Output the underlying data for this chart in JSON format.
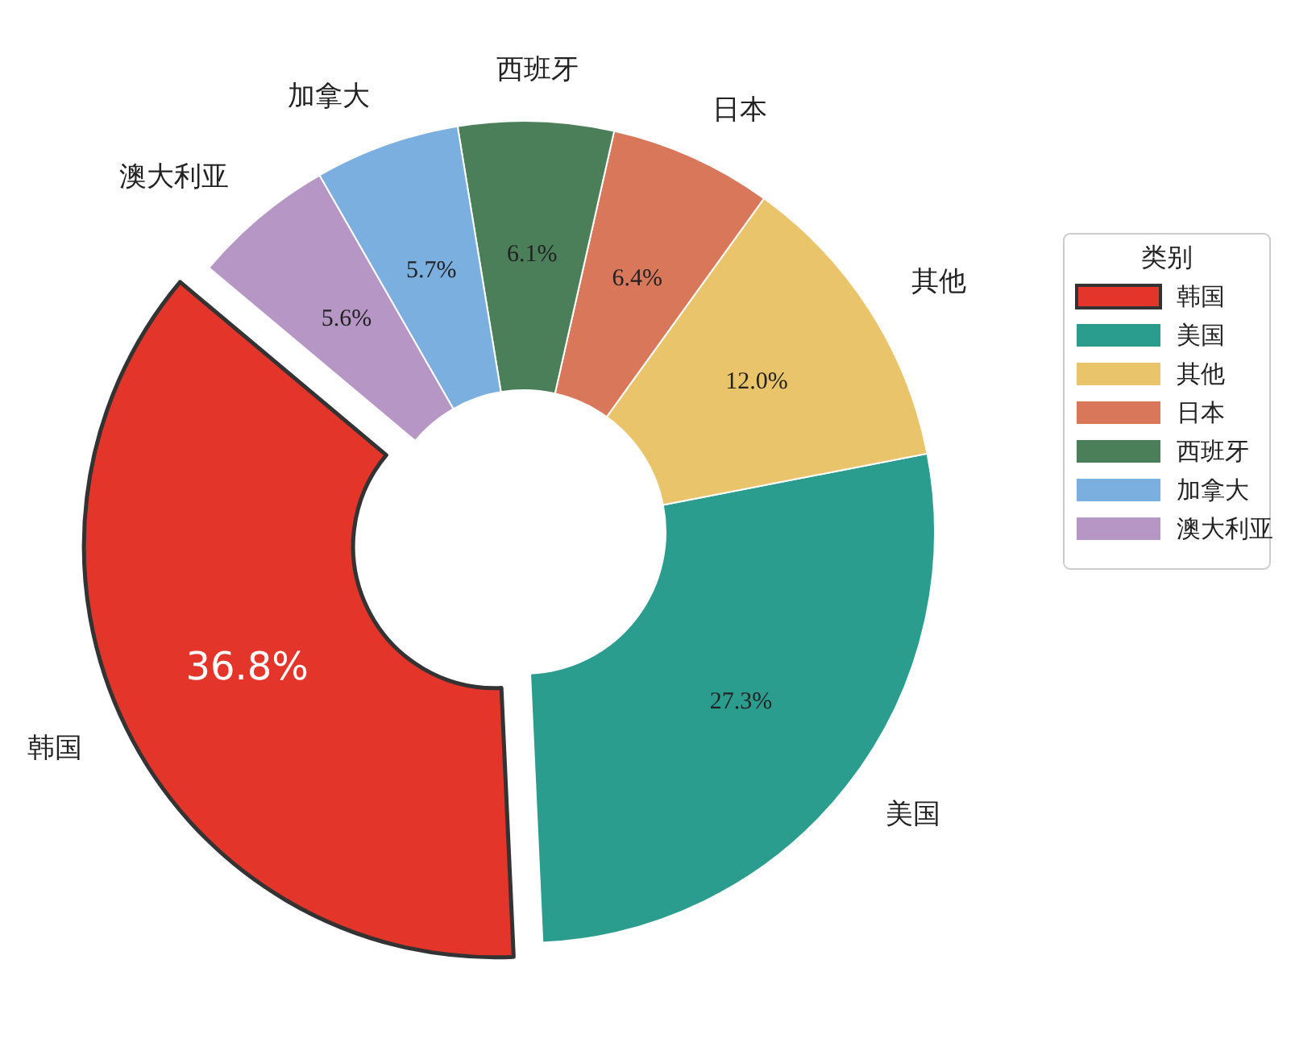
{
  "chart_data": {
    "type": "donut",
    "legend": "right",
    "legend_title": "类别",
    "categories": [
      "韩国",
      "美国",
      "其他",
      "日本",
      "西班牙",
      "加拿大",
      "澳大利亚"
    ],
    "values": [
      36.8,
      27.3,
      12.0,
      6.4,
      6.1,
      5.7,
      5.6
    ],
    "value_labels": [
      "36.8%",
      "27.3%",
      "12.0%",
      "6.4%",
      "6.1%",
      "5.7%",
      "5.6%"
    ],
    "colors": [
      "#e3352a",
      "#2a9d8f",
      "#e9c46a",
      "#d9775a",
      "#4a7f5a",
      "#7aafdf",
      "#b596c4"
    ]
  }
}
